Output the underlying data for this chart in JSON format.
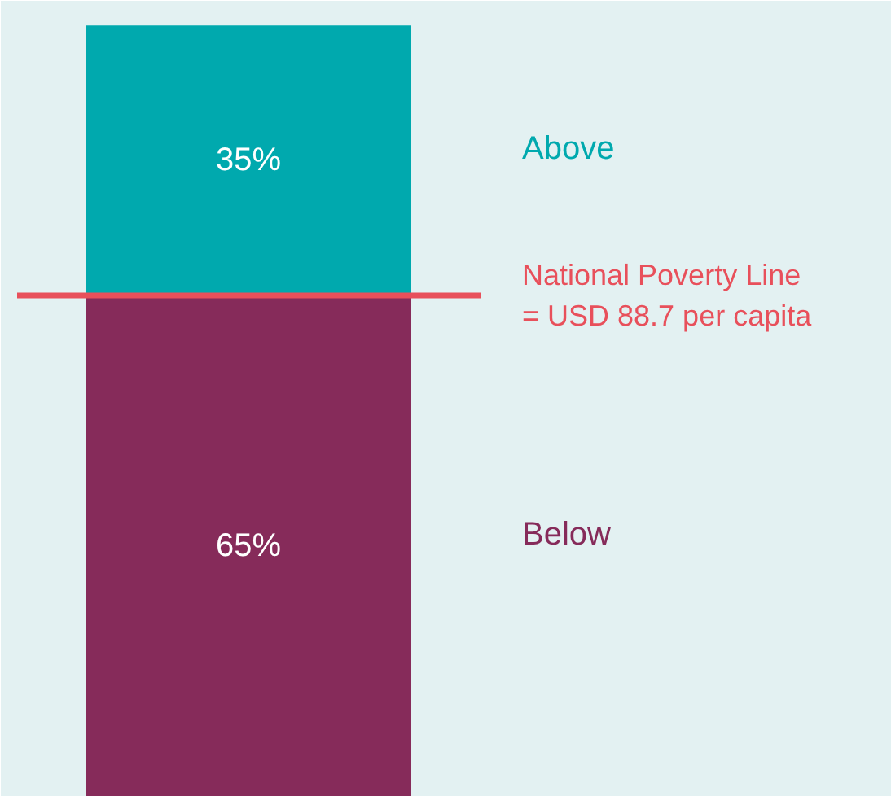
{
  "chart_data": {
    "type": "bar",
    "stacked": true,
    "categories": [
      null
    ],
    "tick_labels": false,
    "grid": false,
    "legend": false,
    "series": [
      {
        "name": "Below",
        "color": "#862b5a",
        "values": [
          65
        ],
        "value_labels": [
          "65%"
        ]
      },
      {
        "name": "Above",
        "color": "#00a9ae",
        "values": [
          35
        ],
        "value_labels": [
          "35%"
        ]
      }
    ],
    "ref_lines": [
      {
        "axis": "y",
        "value": 65,
        "label": "National Poverty Line\n= USD 88.7 per capita",
        "color": "#e8505b"
      }
    ]
  }
}
